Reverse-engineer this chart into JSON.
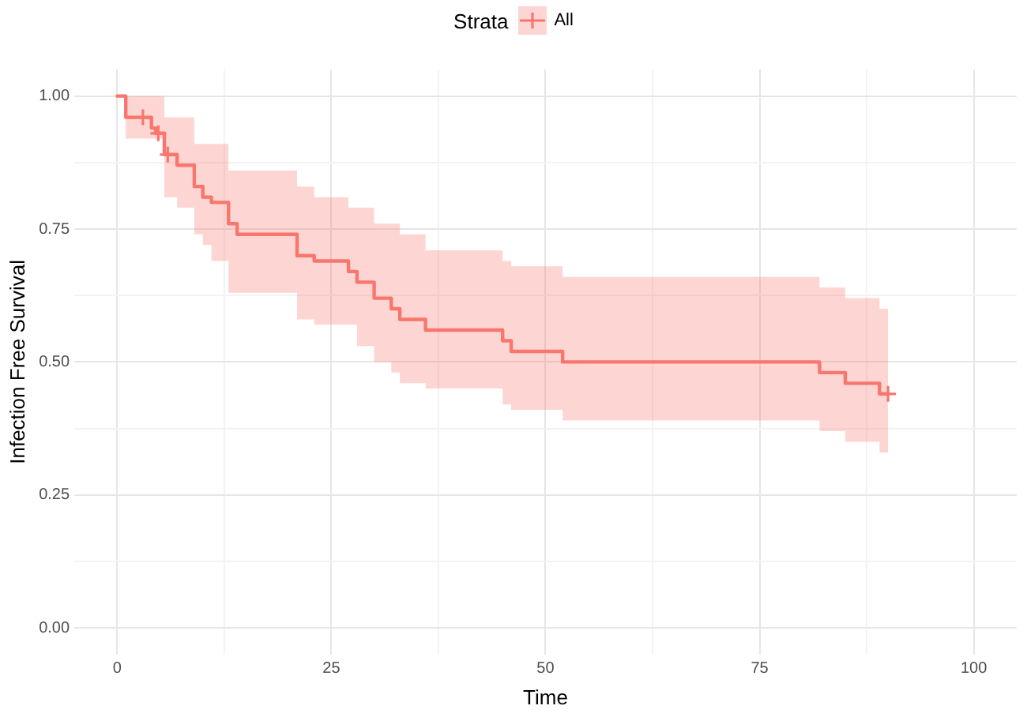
{
  "chart_data": {
    "type": "step",
    "xlabel": "Time",
    "ylabel": "Infection Free Survival",
    "legend_title": "Strata",
    "legend": "top",
    "x": [
      0,
      1,
      4,
      4.5,
      5.5,
      7,
      9,
      10,
      11,
      13,
      14,
      21,
      23,
      27,
      28,
      30,
      32,
      33,
      36,
      45,
      46,
      52,
      82,
      85,
      89,
      90
    ],
    "series": [
      {
        "name": "All",
        "color": "#f8766d",
        "line_style": "solid",
        "values": [
          1,
          0.96,
          0.94,
          0.93,
          0.89,
          0.87,
          0.83,
          0.81,
          0.8,
          0.76,
          0.74,
          0.7,
          0.69,
          0.67,
          0.65,
          0.62,
          0.6,
          0.58,
          0.56,
          0.54,
          0.52,
          0.5,
          0.48,
          0.46,
          0.44,
          0.44
        ],
        "lower": [
          1,
          0.92,
          0.92,
          0.92,
          0.81,
          0.79,
          0.74,
          0.72,
          0.69,
          0.63,
          0.63,
          0.58,
          0.57,
          0.57,
          0.53,
          0.5,
          0.48,
          0.46,
          0.45,
          0.42,
          0.41,
          0.39,
          0.37,
          0.35,
          0.33,
          0.33
        ],
        "upper": [
          1,
          1,
          1,
          1,
          0.96,
          0.96,
          0.91,
          0.91,
          0.91,
          0.86,
          0.86,
          0.83,
          0.81,
          0.79,
          0.79,
          0.76,
          0.76,
          0.74,
          0.71,
          0.69,
          0.68,
          0.66,
          0.64,
          0.62,
          0.6,
          0.6
        ]
      },
      {
        "type": "scatter",
        "color": "#f8766d",
        "marker": "cross",
        "x": [
          3,
          4.8,
          5.9,
          90
        ],
        "values": [
          0.96,
          0.93,
          0.89,
          0.44
        ]
      }
    ],
    "xlim": [
      -5,
      105
    ],
    "xticks": [
      0,
      {
        "value": 12.5,
        "label": null
      },
      25,
      {
        "value": 37.5,
        "label": null
      },
      50,
      {
        "value": 62.5,
        "label": null
      },
      75,
      {
        "value": 87.5,
        "label": null
      },
      100
    ],
    "ylim": [
      -0.05,
      1.05
    ],
    "yticks": [
      {
        "value": 0,
        "label": "0.00"
      },
      {
        "value": 0.125,
        "label": null
      },
      {
        "value": 0.25,
        "label": "0.25"
      },
      {
        "value": 0.375,
        "label": null
      },
      {
        "value": 0.5,
        "label": "0.50"
      },
      {
        "value": 0.625,
        "label": null
      },
      {
        "value": 0.75,
        "label": "0.75"
      },
      {
        "value": 0.875,
        "label": null
      },
      {
        "value": 1,
        "label": "1.00"
      }
    ],
    "grid": true
  }
}
